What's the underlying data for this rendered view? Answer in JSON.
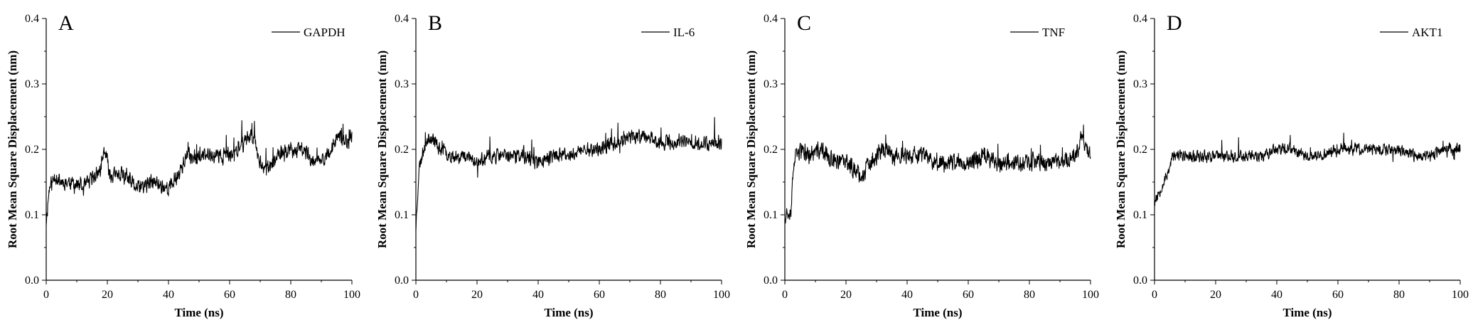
{
  "chart_data": [
    {
      "type": "line",
      "panel_label": "A",
      "series": [
        {
          "name": "GAPDH",
          "color": "#000000",
          "x_range": [
            0,
            100
          ],
          "baseline": [
            [
              0,
              0.09
            ],
            [
              1,
              0.14
            ],
            [
              3,
              0.16
            ],
            [
              5,
              0.15
            ],
            [
              8,
              0.15
            ],
            [
              12,
              0.14
            ],
            [
              16,
              0.16
            ],
            [
              18,
              0.17
            ],
            [
              19,
              0.2
            ],
            [
              21,
              0.16
            ],
            [
              25,
              0.16
            ],
            [
              30,
              0.14
            ],
            [
              35,
              0.15
            ],
            [
              40,
              0.14
            ],
            [
              43,
              0.16
            ],
            [
              46,
              0.19
            ],
            [
              50,
              0.19
            ],
            [
              55,
              0.19
            ],
            [
              60,
              0.19
            ],
            [
              63,
              0.2
            ],
            [
              66,
              0.22
            ],
            [
              68,
              0.22
            ],
            [
              70,
              0.18
            ],
            [
              73,
              0.17
            ],
            [
              76,
              0.19
            ],
            [
              80,
              0.2
            ],
            [
              84,
              0.2
            ],
            [
              88,
              0.18
            ],
            [
              92,
              0.19
            ],
            [
              96,
              0.22
            ],
            [
              98,
              0.21
            ],
            [
              100,
              0.22
            ]
          ],
          "noise": 0.018,
          "seed": 11
        }
      ],
      "xlabel": "Time (ns)",
      "ylabel": "Root Mean Square Displacement (nm)",
      "xlim": [
        0,
        100
      ],
      "ylim": [
        0.0,
        0.4
      ],
      "xticks": [
        "0",
        "20",
        "40",
        "60",
        "80",
        "100"
      ],
      "yticks": [
        "0.0",
        "0.1",
        "0.2",
        "0.3",
        "0.4"
      ],
      "legend_position": "top-right",
      "grid": false
    },
    {
      "type": "line",
      "panel_label": "B",
      "series": [
        {
          "name": "IL-6",
          "color": "#000000",
          "x_range": [
            0,
            100
          ],
          "baseline": [
            [
              0,
              0.08
            ],
            [
              1,
              0.17
            ],
            [
              3,
              0.21
            ],
            [
              5,
              0.22
            ],
            [
              8,
              0.2
            ],
            [
              12,
              0.19
            ],
            [
              16,
              0.19
            ],
            [
              20,
              0.18
            ],
            [
              25,
              0.19
            ],
            [
              30,
              0.19
            ],
            [
              35,
              0.19
            ],
            [
              40,
              0.18
            ],
            [
              45,
              0.19
            ],
            [
              50,
              0.19
            ],
            [
              55,
              0.2
            ],
            [
              60,
              0.2
            ],
            [
              65,
              0.21
            ],
            [
              70,
              0.22
            ],
            [
              75,
              0.22
            ],
            [
              80,
              0.21
            ],
            [
              85,
              0.21
            ],
            [
              90,
              0.21
            ],
            [
              95,
              0.21
            ],
            [
              100,
              0.21
            ]
          ],
          "noise": 0.016,
          "seed": 23
        }
      ],
      "xlabel": "Time (ns)",
      "ylabel": "Root Mean Square Displacement (nm)",
      "xlim": [
        0,
        100
      ],
      "ylim": [
        0.0,
        0.4
      ],
      "xticks": [
        "0",
        "20",
        "40",
        "60",
        "80",
        "100"
      ],
      "yticks": [
        "0.0",
        "0.1",
        "0.2",
        "0.3",
        "0.4"
      ],
      "legend_position": "top-right",
      "grid": false
    },
    {
      "type": "line",
      "panel_label": "C",
      "series": [
        {
          "name": "TNF",
          "color": "#000000",
          "x_range": [
            0,
            100
          ],
          "baseline": [
            [
              0,
              0.1
            ],
            [
              2,
              0.11
            ],
            [
              3,
              0.18
            ],
            [
              5,
              0.2
            ],
            [
              8,
              0.19
            ],
            [
              12,
              0.2
            ],
            [
              16,
              0.18
            ],
            [
              20,
              0.18
            ],
            [
              25,
              0.16
            ],
            [
              28,
              0.18
            ],
            [
              32,
              0.2
            ],
            [
              36,
              0.19
            ],
            [
              40,
              0.19
            ],
            [
              45,
              0.19
            ],
            [
              50,
              0.18
            ],
            [
              55,
              0.18
            ],
            [
              60,
              0.18
            ],
            [
              65,
              0.19
            ],
            [
              70,
              0.18
            ],
            [
              75,
              0.18
            ],
            [
              80,
              0.18
            ],
            [
              85,
              0.18
            ],
            [
              90,
              0.18
            ],
            [
              95,
              0.19
            ],
            [
              97,
              0.22
            ],
            [
              100,
              0.19
            ]
          ],
          "noise": 0.02,
          "seed": 37
        }
      ],
      "xlabel": "Time (ns)",
      "ylabel": "Root Mean Square Displacement (nm)",
      "xlim": [
        0,
        100
      ],
      "ylim": [
        0.0,
        0.4
      ],
      "xticks": [
        "0",
        "20",
        "40",
        "60",
        "80",
        "100"
      ],
      "yticks": [
        "0.0",
        "0.1",
        "0.2",
        "0.3",
        "0.4"
      ],
      "legend_position": "top-right",
      "grid": false
    },
    {
      "type": "line",
      "panel_label": "D",
      "series": [
        {
          "name": "AKT1",
          "color": "#000000",
          "x_range": [
            0,
            100
          ],
          "baseline": [
            [
              0,
              0.12
            ],
            [
              2,
              0.14
            ],
            [
              4,
              0.16
            ],
            [
              6,
              0.19
            ],
            [
              10,
              0.19
            ],
            [
              15,
              0.19
            ],
            [
              20,
              0.19
            ],
            [
              25,
              0.19
            ],
            [
              30,
              0.19
            ],
            [
              35,
              0.19
            ],
            [
              40,
              0.2
            ],
            [
              45,
              0.2
            ],
            [
              50,
              0.19
            ],
            [
              55,
              0.19
            ],
            [
              60,
              0.2
            ],
            [
              65,
              0.2
            ],
            [
              70,
              0.2
            ],
            [
              75,
              0.2
            ],
            [
              80,
              0.2
            ],
            [
              85,
              0.19
            ],
            [
              90,
              0.19
            ],
            [
              95,
              0.2
            ],
            [
              100,
              0.2
            ]
          ],
          "noise": 0.013,
          "seed": 53
        }
      ],
      "xlabel": "Time (ns)",
      "ylabel": "Root Mean Square Displacement (nm)",
      "xlim": [
        0,
        100
      ],
      "ylim": [
        0.0,
        0.4
      ],
      "xticks": [
        "0",
        "20",
        "40",
        "60",
        "80",
        "100"
      ],
      "yticks": [
        "0.0",
        "0.1",
        "0.2",
        "0.3",
        "0.4"
      ],
      "legend_position": "top-right",
      "grid": false
    }
  ]
}
